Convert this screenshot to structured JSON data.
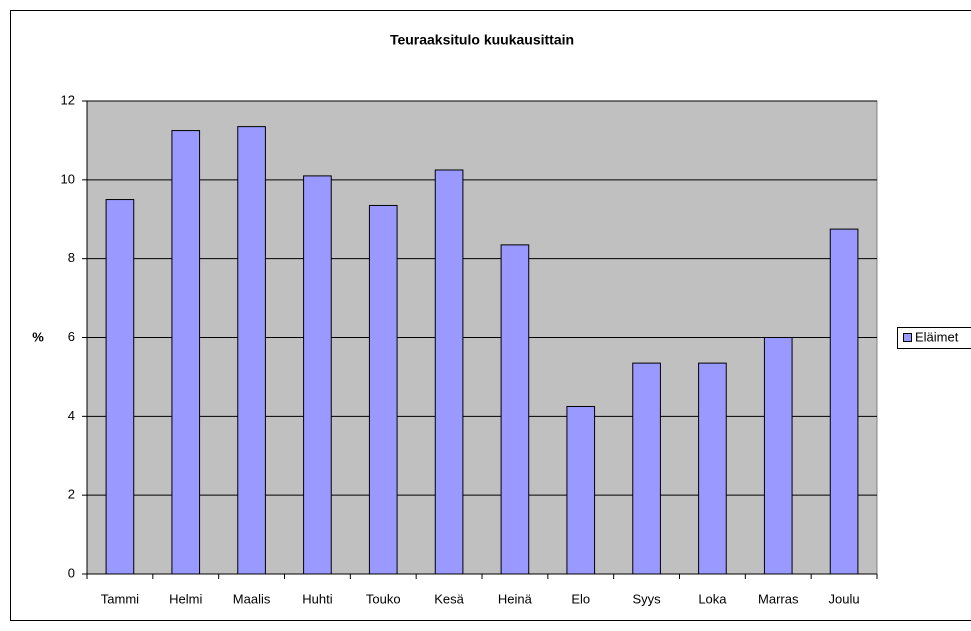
{
  "chart_data": {
    "type": "bar",
    "title": "Teuraaksitulo kuukausittain",
    "ylabel": "%",
    "categories": [
      "Tammi",
      "Helmi",
      "Maalis",
      "Huhti",
      "Touko",
      "Kesä",
      "Heinä",
      "Elo",
      "Syys",
      "Loka",
      "Marras",
      "Joulu"
    ],
    "series": [
      {
        "name": "Eläimet",
        "color": "#9999ff",
        "values": [
          9.5,
          11.25,
          11.35,
          10.1,
          9.35,
          10.25,
          8.35,
          4.25,
          5.35,
          5.35,
          6.0,
          8.75
        ]
      }
    ],
    "ylim": [
      0,
      12
    ],
    "yticks": [
      0,
      2,
      4,
      6,
      8,
      10,
      12
    ],
    "grid": true,
    "legend": "right",
    "plot_background": "#c0c0c0"
  }
}
